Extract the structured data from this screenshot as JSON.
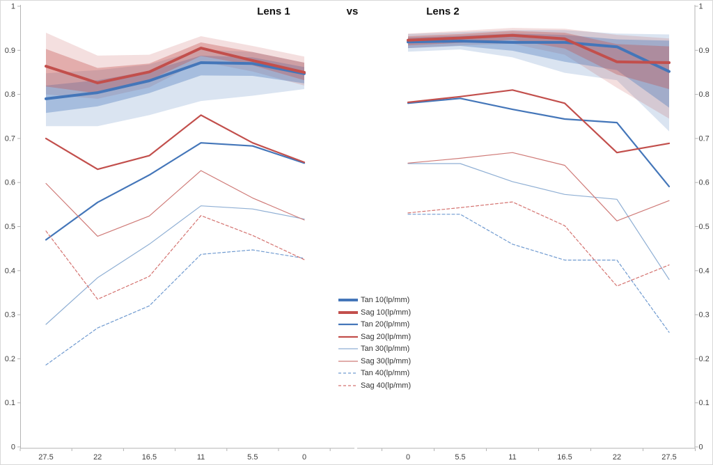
{
  "title": {
    "left": "Lens 1",
    "separator": "vs",
    "right": "Lens 2"
  },
  "colors": {
    "tan": "#4476b9",
    "sag": "#c24f4c",
    "tan_light": "#8fafd4",
    "sag_light": "#cf7a77",
    "tan_dash": "#6f9ad0",
    "sag_dash": "#d4726f",
    "tan_band_rgb": "68,118,185",
    "sag_band_rgb": "194,79,76",
    "axis_line": "#b3b3b3",
    "axis_text": "#404040"
  },
  "legend": {
    "position": "between-charts",
    "items": [
      {
        "label": "Tan 10(lp/mm)",
        "series": "tan10"
      },
      {
        "label": "Sag 10(lp/mm)",
        "series": "sag10"
      },
      {
        "label": "Tan 20(lp/mm)",
        "series": "tan20"
      },
      {
        "label": "Sag 20(lp/mm)",
        "series": "sag20"
      },
      {
        "label": "Tan 30(lp/mm)",
        "series": "tan30"
      },
      {
        "label": "Sag 30(lp/mm)",
        "series": "sag30"
      },
      {
        "label": "Tan 40(lp/mm)",
        "series": "tan40"
      },
      {
        "label": "Sag 40(lp/mm)",
        "series": "sag40"
      }
    ]
  },
  "chart_data": [
    {
      "type": "line",
      "title": "Lens 1",
      "categories": [
        "27.5",
        "22",
        "16.5",
        "11",
        "5.5",
        "0"
      ],
      "ylim": [
        0,
        1
      ],
      "grid": "off",
      "y_axis_side": "left",
      "y_ticks": [
        "1",
        "0.9",
        "0.8",
        "0.7",
        "0.6",
        "0.5",
        "0.4",
        "0.3",
        "0.2",
        "0.1",
        "0"
      ],
      "series": [
        {
          "name": "Tan 10(lp/mm)",
          "key": "tan10",
          "values": [
            0.79,
            0.804,
            0.831,
            0.872,
            0.87,
            0.847
          ]
        },
        {
          "name": "Sag 10(lp/mm)",
          "key": "sag10",
          "values": [
            0.864,
            0.826,
            0.851,
            0.905,
            0.877,
            0.85
          ]
        },
        {
          "name": "Tan 20(lp/mm)",
          "key": "tan20",
          "values": [
            0.47,
            0.555,
            0.617,
            0.69,
            0.683,
            0.644
          ]
        },
        {
          "name": "Sag 20(lp/mm)",
          "key": "sag20",
          "values": [
            0.7,
            0.63,
            0.661,
            0.753,
            0.69,
            0.646
          ]
        },
        {
          "name": "Tan 30(lp/mm)",
          "key": "tan30",
          "values": [
            0.278,
            0.384,
            0.46,
            0.547,
            0.54,
            0.517
          ]
        },
        {
          "name": "Sag 30(lp/mm)",
          "key": "sag30",
          "values": [
            0.598,
            0.478,
            0.524,
            0.627,
            0.565,
            0.515
          ]
        },
        {
          "name": "Tan 40(lp/mm)",
          "key": "tan40",
          "values": [
            0.186,
            0.27,
            0.32,
            0.437,
            0.447,
            0.428
          ]
        },
        {
          "name": "Sag 40(lp/mm)",
          "key": "sag40",
          "values": [
            0.49,
            0.335,
            0.387,
            0.525,
            0.48,
            0.425
          ]
        }
      ],
      "bands": [
        {
          "series": "tan10",
          "level": "outer",
          "low": [
            0.728,
            0.728,
            0.753,
            0.785,
            0.797,
            0.812
          ],
          "high": [
            0.848,
            0.855,
            0.868,
            0.902,
            0.896,
            0.872
          ]
        },
        {
          "series": "tan10",
          "level": "inner",
          "low": [
            0.758,
            0.773,
            0.803,
            0.843,
            0.842,
            0.825
          ],
          "high": [
            0.82,
            0.832,
            0.853,
            0.888,
            0.884,
            0.862
          ]
        },
        {
          "series": "sag10",
          "level": "outer",
          "low": [
            0.8,
            0.79,
            0.816,
            0.875,
            0.852,
            0.82
          ],
          "high": [
            0.94,
            0.888,
            0.89,
            0.932,
            0.91,
            0.886
          ]
        },
        {
          "series": "sag10",
          "level": "inner",
          "low": [
            0.818,
            0.802,
            0.832,
            0.887,
            0.866,
            0.832
          ],
          "high": [
            0.903,
            0.86,
            0.87,
            0.918,
            0.896,
            0.872
          ]
        }
      ]
    },
    {
      "type": "line",
      "title": "Lens 2",
      "categories": [
        "0",
        "5.5",
        "11",
        "16.5",
        "22",
        "27.5"
      ],
      "ylim": [
        0,
        1
      ],
      "grid": "off",
      "y_axis_side": "right",
      "y_ticks": [
        "1",
        "0.9",
        "0.8",
        "0.7",
        "0.6",
        "0.5",
        "0.4",
        "0.3",
        "0.2",
        "0.1",
        "0"
      ],
      "series": [
        {
          "name": "Tan 10(lp/mm)",
          "key": "tan10",
          "values": [
            0.919,
            0.921,
            0.918,
            0.918,
            0.908,
            0.852
          ]
        },
        {
          "name": "Sag 10(lp/mm)",
          "key": "sag10",
          "values": [
            0.923,
            0.928,
            0.934,
            0.926,
            0.874,
            0.872
          ]
        },
        {
          "name": "Tan 20(lp/mm)",
          "key": "tan20",
          "values": [
            0.78,
            0.791,
            0.766,
            0.744,
            0.736,
            0.591
          ]
        },
        {
          "name": "Sag 20(lp/mm)",
          "key": "sag20",
          "values": [
            0.782,
            0.795,
            0.81,
            0.78,
            0.668,
            0.689
          ]
        },
        {
          "name": "Tan 30(lp/mm)",
          "key": "tan30",
          "values": [
            0.643,
            0.643,
            0.602,
            0.573,
            0.562,
            0.38
          ]
        },
        {
          "name": "Sag 30(lp/mm)",
          "key": "sag30",
          "values": [
            0.644,
            0.655,
            0.668,
            0.639,
            0.513,
            0.559
          ]
        },
        {
          "name": "Tan 40(lp/mm)",
          "key": "tan40",
          "values": [
            0.528,
            0.528,
            0.46,
            0.424,
            0.424,
            0.26
          ]
        },
        {
          "name": "Sag 40(lp/mm)",
          "key": "sag40",
          "values": [
            0.531,
            0.543,
            0.556,
            0.502,
            0.365,
            0.413
          ]
        }
      ],
      "bands": [
        {
          "series": "tan10",
          "level": "outer",
          "low": [
            0.897,
            0.902,
            0.884,
            0.849,
            0.832,
            0.716
          ],
          "high": [
            0.937,
            0.941,
            0.946,
            0.946,
            0.938,
            0.936
          ]
        },
        {
          "series": "tan10",
          "level": "inner",
          "low": [
            0.905,
            0.91,
            0.899,
            0.874,
            0.855,
            0.77
          ],
          "high": [
            0.929,
            0.933,
            0.938,
            0.935,
            0.925,
            0.922
          ]
        },
        {
          "series": "sag10",
          "level": "outer",
          "low": [
            0.905,
            0.911,
            0.915,
            0.89,
            0.815,
            0.745
          ],
          "high": [
            0.938,
            0.944,
            0.951,
            0.949,
            0.935,
            0.927
          ]
        },
        {
          "series": "sag10",
          "level": "inner",
          "low": [
            0.911,
            0.917,
            0.924,
            0.904,
            0.845,
            0.812
          ],
          "high": [
            0.932,
            0.937,
            0.944,
            0.94,
            0.914,
            0.909
          ]
        }
      ]
    }
  ]
}
